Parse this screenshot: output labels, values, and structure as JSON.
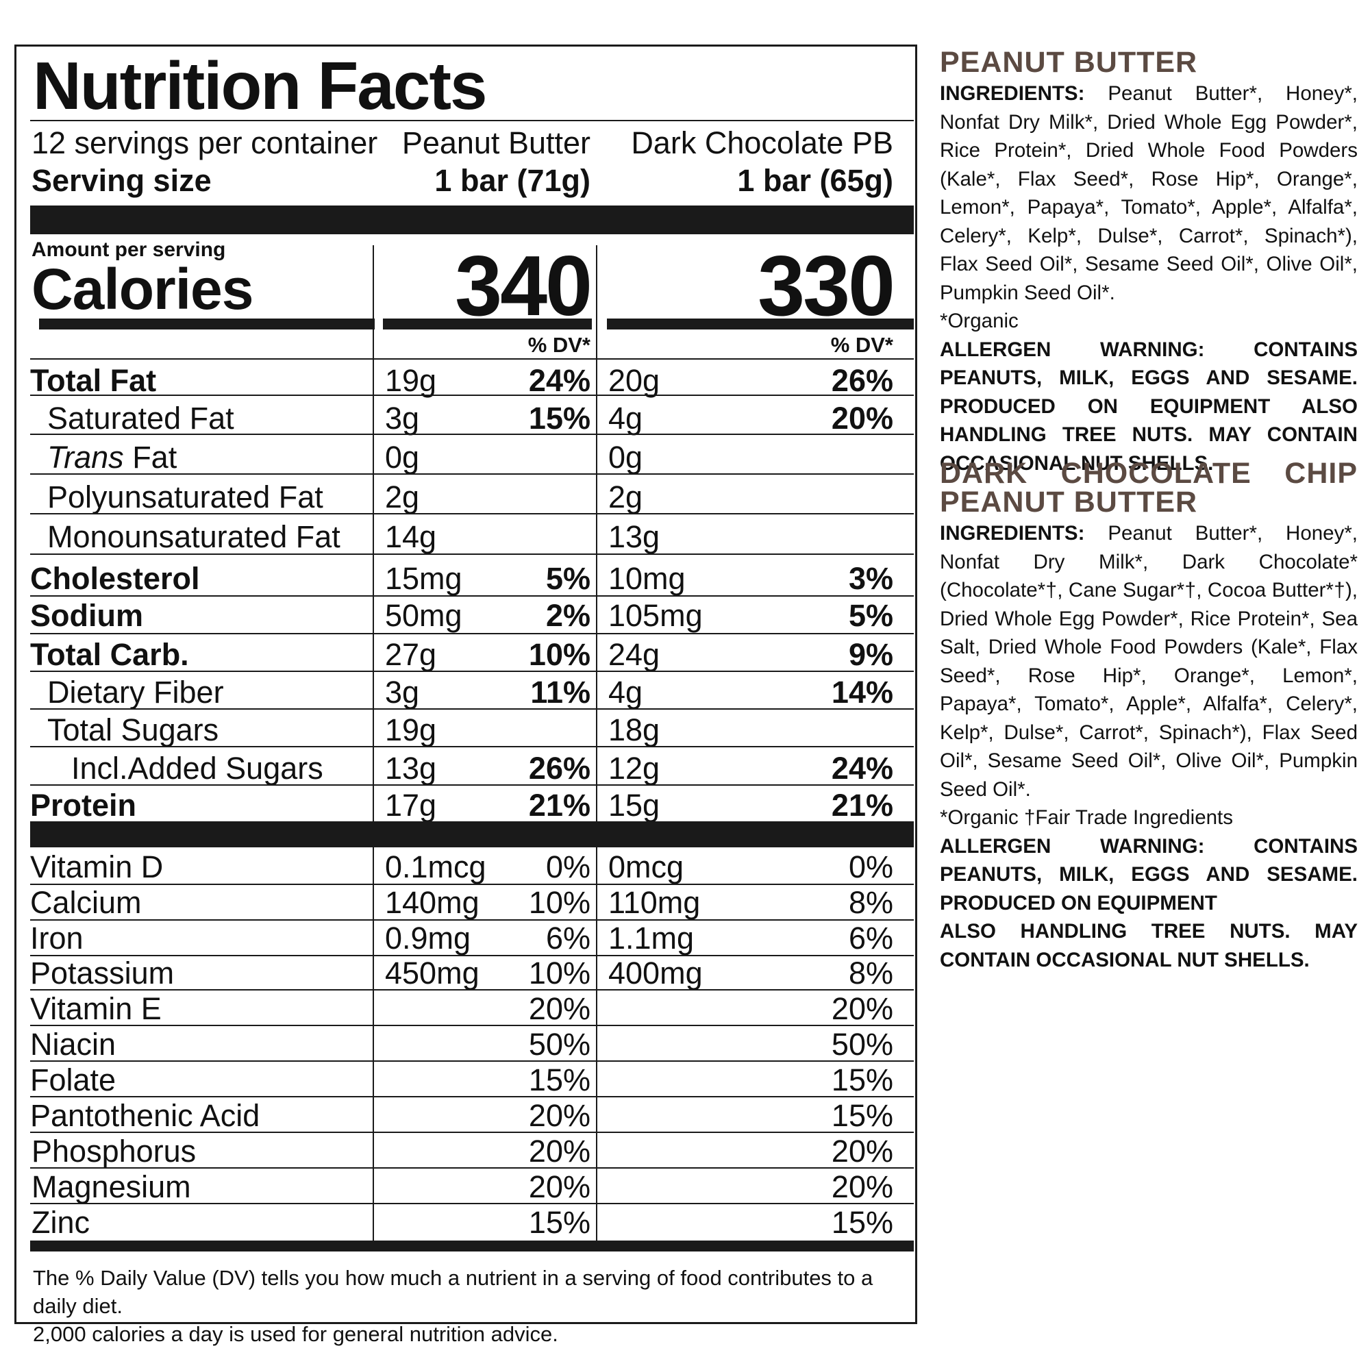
{
  "label": {
    "title": "Nutrition Facts",
    "servings": "12 servings per container",
    "serving_size_label": "Serving size",
    "products": [
      {
        "name": "Peanut Butter",
        "size": "1 bar (71g)",
        "calories": "340"
      },
      {
        "name": "Dark Chocolate PB",
        "size": "1 bar (65g)",
        "calories": "330"
      }
    ],
    "amount_per_serving": "Amount per serving",
    "calories_label": "Calories",
    "dv_label": "% DV*",
    "nutrients": [
      {
        "name": "Total Fat",
        "pb": "19g",
        "pb_dv": "24%",
        "dc": "20g",
        "dc_dv": "26%"
      },
      {
        "name": "Saturated Fat",
        "pb": "3g",
        "pb_dv": "15%",
        "dc": "4g",
        "dc_dv": "20%"
      },
      {
        "name_italic": "Trans",
        "name_rest": " Fat",
        "pb": "0g",
        "pb_dv": "",
        "dc": "0g",
        "dc_dv": ""
      },
      {
        "name": "Polyunsaturated Fat",
        "pb": "2g",
        "pb_dv": "",
        "dc": "2g",
        "dc_dv": ""
      },
      {
        "name": "Monounsaturated Fat",
        "pb": "14g",
        "pb_dv": "",
        "dc": "13g",
        "dc_dv": ""
      },
      {
        "name": "Cholesterol",
        "pb": "15mg",
        "pb_dv": "5%",
        "dc": "10mg",
        "dc_dv": "3%"
      },
      {
        "name": "Sodium",
        "pb": "50mg",
        "pb_dv": "2%",
        "dc": "105mg",
        "dc_dv": "5%"
      },
      {
        "name": "Total Carb.",
        "pb": "27g",
        "pb_dv": "10%",
        "dc": "24g",
        "dc_dv": "9%"
      },
      {
        "name": "Dietary Fiber",
        "pb": "3g",
        "pb_dv": "11%",
        "dc": "4g",
        "dc_dv": "14%"
      },
      {
        "name": "Total Sugars",
        "pb": "19g",
        "pb_dv": "",
        "dc": "18g",
        "dc_dv": ""
      },
      {
        "name": "Incl.Added Sugars",
        "pb": "13g",
        "pb_dv": "26%",
        "dc": "12g",
        "dc_dv": "24%"
      },
      {
        "name": "Protein",
        "pb": "17g",
        "pb_dv": "21%",
        "dc": "15g",
        "dc_dv": "21%"
      }
    ],
    "micros": [
      {
        "name": "Vitamin D",
        "pb": "0.1mcg",
        "pb_dv": "0%",
        "dc": "0mcg",
        "dc_dv": "0%"
      },
      {
        "name": "Calcium",
        "pb": "140mg",
        "pb_dv": "10%",
        "dc": "110mg",
        "dc_dv": "8%"
      },
      {
        "name": "Iron",
        "pb": "0.9mg",
        "pb_dv": "6%",
        "dc": "1.1mg",
        "dc_dv": "6%"
      },
      {
        "name": "Potassium",
        "pb": "450mg",
        "pb_dv": "10%",
        "dc": "400mg",
        "dc_dv": "8%"
      },
      {
        "name": "Vitamin E",
        "pb": "",
        "pb_dv": "20%",
        "dc": "",
        "dc_dv": "20%"
      },
      {
        "name": "Niacin",
        "pb": "",
        "pb_dv": "50%",
        "dc": "",
        "dc_dv": "50%"
      },
      {
        "name": "Folate",
        "pb": "",
        "pb_dv": "15%",
        "dc": "",
        "dc_dv": "15%"
      },
      {
        "name": "Pantothenic Acid",
        "pb": "",
        "pb_dv": "20%",
        "dc": "",
        "dc_dv": "15%"
      },
      {
        "name": "Phosphorus",
        "pb": "",
        "pb_dv": "20%",
        "dc": "",
        "dc_dv": "20%"
      },
      {
        "name": "Magnesium",
        "pb": "",
        "pb_dv": "20%",
        "dc": "",
        "dc_dv": "20%"
      },
      {
        "name": "Zinc",
        "pb": "",
        "pb_dv": "15%",
        "dc": "",
        "dc_dv": "15%"
      }
    ],
    "footnote_line1": "The % Daily Value (DV) tells you how much a nutrient in a serving of food contributes to a daily diet.",
    "footnote_line2": "2,000 calories a day is used for general nutrition advice."
  },
  "ingredients": {
    "accent_color": "#5b4a42",
    "peanut_butter": {
      "heading": "PEANUT BUTTER",
      "label": "INGREDIENTS:",
      "text": " Peanut Butter*, Honey*, Nonfat Dry Milk*, Dried Whole Egg Powder*, Rice Protein*, Dried Whole Food Powders (Kale*, Flax Seed*, Rose Hip*, Orange*, Lemon*, Papaya*, Tomato*, Apple*, Alfalfa*, Celery*, Kelp*, Dulse*, Carrot*, Spinach*), Flax Seed Oil*, Sesame Seed Oil*, Olive Oil*, Pumpkin Seed Oil*.",
      "note": "*Organic",
      "allergen": "ALLERGEN WARNING:  CONTAINS PEANUTS, MILK, EGGS AND SESAME.  PRODUCED ON EQUIPMENT ALSO HANDLING TREE NUTS.  MAY CONTAIN OCCASIONAL NUT SHELLS."
    },
    "dark_chocolate": {
      "heading_line1": "DARK CHOCOLATE CHIP",
      "heading_line2": "PEANUT BUTTER",
      "label": "INGREDIENTS:",
      "text": " Peanut Butter*, Honey*, Nonfat Dry Milk*, Dark Chocolate* (Chocolate*†, Cane Sugar*†, Cocoa Butter*†), Dried Whole Egg Powder*, Rice Protein*, Sea Salt, Dried Whole Food Powders (Kale*, Flax Seed*, Rose Hip*, Orange*, Lemon*, Papaya*, Tomato*, Apple*, Alfalfa*, Celery*, Kelp*, Dulse*, Carrot*, Spinach*), Flax Seed Oil*, Sesame Seed Oil*, Olive Oil*, Pumpkin Seed Oil*.",
      "note": "*Organic †Fair Trade Ingredients",
      "allergen_1": "ALLERGEN WARNING:  CONTAINS PEANUTS, MILK, EGGS AND SESAME.  PRODUCED ON EQUIPMENT",
      "allergen_2": "ALSO HANDLING TREE NUTS.  MAY CONTAIN OCCASIONAL NUT SHELLS."
    }
  }
}
